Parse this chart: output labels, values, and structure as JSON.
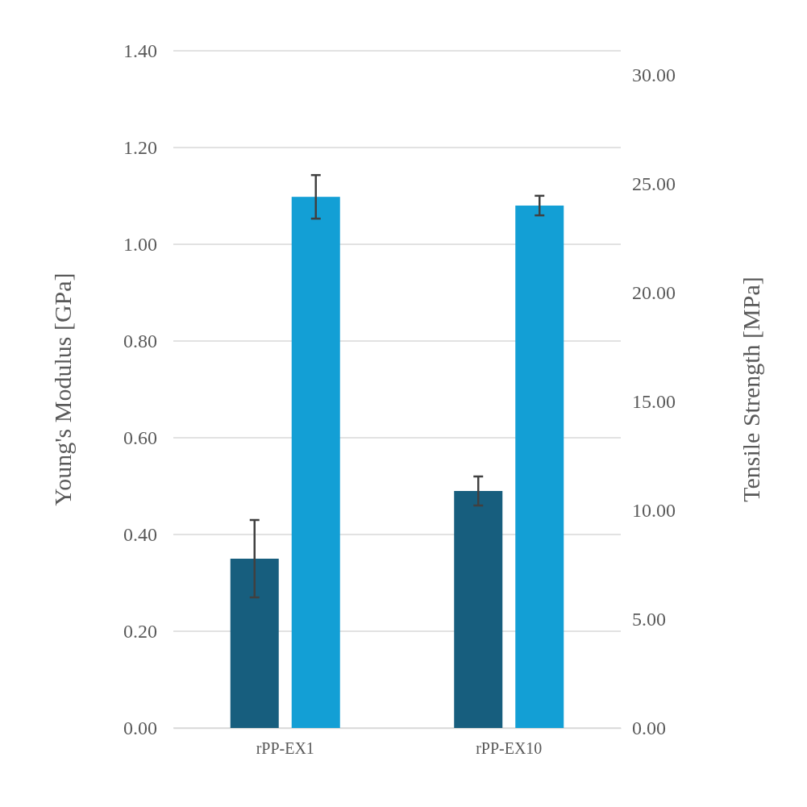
{
  "chart_data": {
    "type": "bar",
    "categories": [
      "rPP-EX1",
      "rPP-EX10"
    ],
    "series": [
      {
        "color": "#175e7e",
        "values": [
          0.35,
          0.49
        ],
        "errors": [
          0.08,
          0.03
        ]
      },
      {
        "color": "#139fd5",
        "values": [
          24.4,
          24.0
        ],
        "errors": [
          1.0,
          0.45
        ],
        "axis": "y2"
      }
    ],
    "ylabel": "Young's Modulus [GPa]",
    "y2label": "Tensile Strength [MPa]",
    "ylim": [
      0,
      1.4
    ],
    "yticks": [
      {
        "value": 0,
        "label": "0.00"
      },
      {
        "value": 0.2,
        "label": "0.20"
      },
      {
        "value": 0.4,
        "label": "0.40"
      },
      {
        "value": 0.6,
        "label": "0.60"
      },
      {
        "value": 0.8,
        "label": "0.80"
      },
      {
        "value": 1,
        "label": "1.00"
      },
      {
        "value": 1.2,
        "label": "1.20"
      },
      {
        "value": 1.4,
        "label": "1.40"
      }
    ],
    "y2lim": [
      0,
      31.11
    ],
    "y2ticks": [
      {
        "value": 0,
        "label": "0.00"
      },
      {
        "value": 5,
        "label": "5.00"
      },
      {
        "value": 10,
        "label": "10.00"
      },
      {
        "value": 15,
        "label": "15.00"
      },
      {
        "value": 20,
        "label": "20.00"
      },
      {
        "value": 25,
        "label": "25.00"
      },
      {
        "value": 30,
        "label": "30.00"
      }
    ],
    "grid": "y"
  }
}
